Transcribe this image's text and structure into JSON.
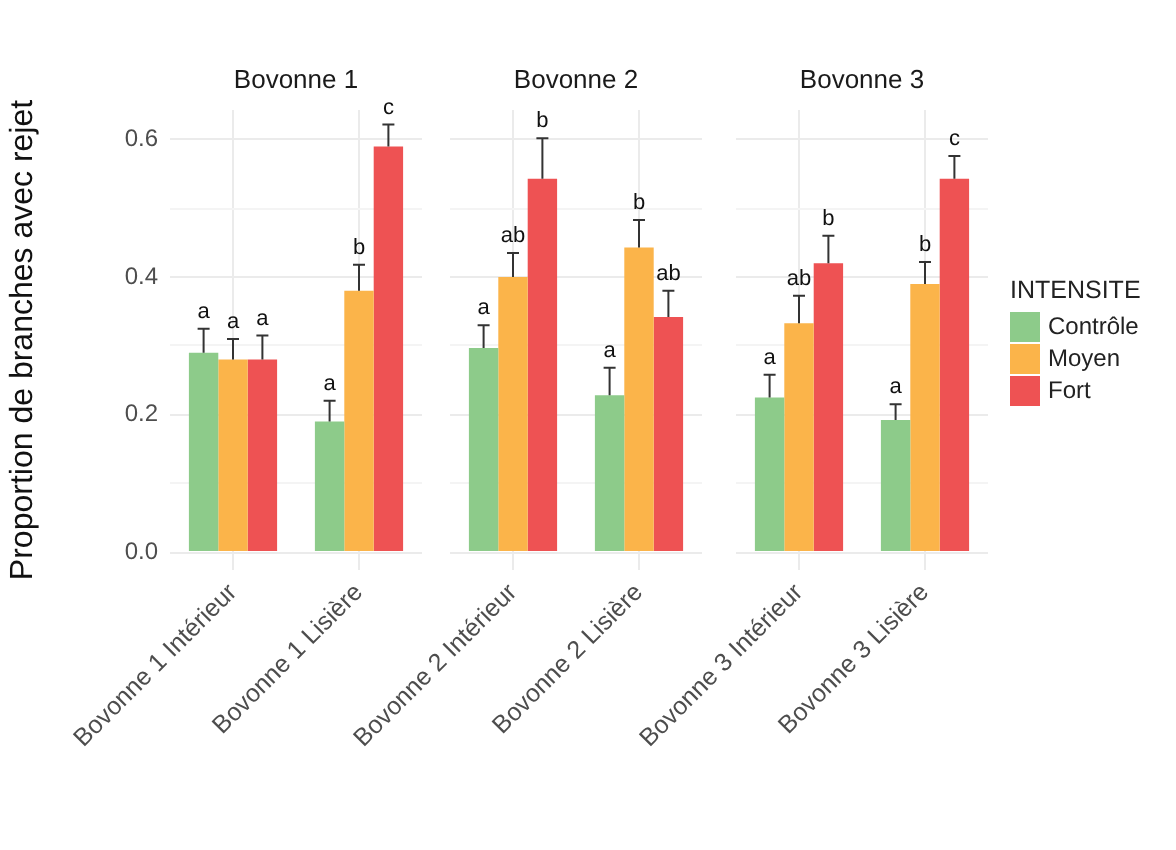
{
  "chart_data": [
    {
      "type": "bar",
      "title": "Bovonne 1",
      "ylabel": "Proportion de branches avec rejet",
      "categories": [
        "Bovonne 1 Intérieur",
        "Bovonne 1 Lisière"
      ],
      "series": [
        {
          "color": "#8dcb8a",
          "values": [
            0.29,
            0.19
          ],
          "errors": [
            [
              0.29,
              0.325
            ],
            [
              0.19,
              0.22
            ]
          ]
        },
        {
          "color": "#fbb44a",
          "values": [
            0.28,
            0.38
          ],
          "errors": [
            [
              0.28,
              0.31
            ],
            [
              0.38,
              0.418
            ]
          ]
        },
        {
          "color": "#ee5253",
          "values": [
            0.28,
            0.59
          ],
          "errors": [
            [
              0.28,
              0.315
            ],
            [
              0.59,
              0.622
            ]
          ]
        }
      ],
      "ylim": [
        -0.026,
        0.643
      ],
      "yticks": [
        {
          "value": 0,
          "label": "0.0"
        },
        {
          "value": 0.1,
          "label": null
        },
        0.2,
        {
          "value": 0.3,
          "label": null
        },
        0.4,
        {
          "value": 0.5,
          "label": null
        },
        0.6
      ],
      "grid": true,
      "annotations": [
        "a",
        "a",
        "a",
        "a",
        "b",
        "c"
      ]
    },
    {
      "type": "bar",
      "title": "Bovonne 2",
      "categories": [
        "Bovonne 2 Intérieur",
        "Bovonne 2 Lisière"
      ],
      "series": [
        {
          "color": "#8dcb8a",
          "values": [
            0.297,
            0.228
          ],
          "errors": [
            [
              0.297,
              0.33
            ],
            [
              0.228,
              0.268
            ]
          ]
        },
        {
          "color": "#fbb44a",
          "values": [
            0.4,
            0.443
          ],
          "errors": [
            [
              0.4,
              0.435
            ],
            [
              0.443,
              0.483
            ]
          ]
        },
        {
          "color": "#ee5253",
          "values": [
            0.543,
            0.342
          ],
          "errors": [
            [
              0.543,
              0.602
            ],
            [
              0.342,
              0.38
            ]
          ]
        }
      ],
      "ylim": [
        -0.026,
        0.643
      ],
      "yticks": [
        0,
        {
          "value": 0.1,
          "label": null
        },
        0.2,
        {
          "value": 0.3,
          "label": null
        },
        0.4,
        {
          "value": 0.5,
          "label": null
        },
        0.6
      ],
      "grid": true,
      "tick_labels": "x",
      "annotations": [
        "a",
        "ab",
        "b",
        "a",
        "b",
        "ab"
      ]
    },
    {
      "type": "bar",
      "title": "Bovonne 3",
      "categories": [
        "Bovonne 3 Intérieur",
        "Bovonne 3 Lisière"
      ],
      "series": [
        {
          "name": "Contrôle",
          "color": "#8dcb8a",
          "values": [
            0.225,
            0.192
          ],
          "errors": [
            [
              0.225,
              0.258
            ],
            [
              0.192,
              0.215
            ]
          ]
        },
        {
          "name": "Moyen",
          "color": "#fbb44a",
          "values": [
            0.333,
            0.39
          ],
          "errors": [
            [
              0.333,
              0.373
            ],
            [
              0.39,
              0.422
            ]
          ]
        },
        {
          "name": "Fort",
          "color": "#ee5253",
          "values": [
            0.42,
            0.543
          ],
          "errors": [
            [
              0.42,
              0.46
            ],
            [
              0.543,
              0.576
            ]
          ]
        }
      ],
      "ylim": [
        -0.026,
        0.643
      ],
      "yticks": [
        0,
        {
          "value": 0.1,
          "label": null
        },
        0.2,
        {
          "value": 0.3,
          "label": null
        },
        0.4,
        {
          "value": 0.5,
          "label": null
        },
        0.6
      ],
      "grid": true,
      "tick_labels": "x",
      "legend": "right",
      "legend_title": "INTENSITE",
      "annotations": [
        "a",
        "ab",
        "b",
        "a",
        "b",
        "c"
      ]
    }
  ]
}
